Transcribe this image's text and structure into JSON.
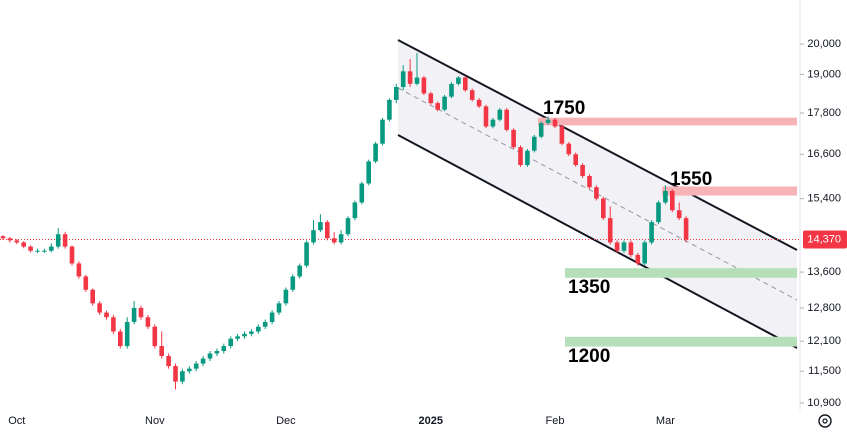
{
  "chart_data": {
    "type": "candlestick",
    "log_scale": true,
    "ylim": [
      21550,
      10770
    ],
    "yticks": [
      {
        "value": 20000,
        "label": "20,000"
      },
      {
        "value": 19000,
        "label": "19,000"
      },
      {
        "value": 17800,
        "label": "17,800"
      },
      {
        "value": 16600,
        "label": "16,600"
      },
      {
        "value": 15400,
        "label": "15,400"
      },
      {
        "value": 13600,
        "label": "13,600"
      },
      {
        "value": 12800,
        "label": "12,800"
      },
      {
        "value": 12100,
        "label": "12,100"
      },
      {
        "value": 11500,
        "label": "11,500"
      },
      {
        "value": 10900,
        "label": "10,900"
      }
    ],
    "last_price": {
      "value": 14370,
      "label": "14,370",
      "color": "#f23645"
    },
    "up_color": "#089981",
    "down_color": "#f23645",
    "categories": [
      null,
      null,
      "Oct",
      null,
      null,
      null,
      null,
      null,
      null,
      null,
      null,
      null,
      null,
      null,
      null,
      null,
      null,
      null,
      null,
      null,
      null,
      null,
      "Nov",
      null,
      null,
      null,
      null,
      null,
      null,
      null,
      null,
      null,
      null,
      null,
      null,
      null,
      null,
      null,
      null,
      null,
      null,
      "Dec",
      null,
      null,
      null,
      null,
      null,
      null,
      null,
      null,
      null,
      null,
      null,
      null,
      null,
      null,
      null,
      null,
      null,
      null,
      null,
      null,
      "2025",
      null,
      null,
      null,
      null,
      null,
      null,
      null,
      null,
      null,
      null,
      null,
      null,
      null,
      null,
      null,
      null,
      null,
      "Feb",
      null,
      null,
      null,
      null,
      null,
      null,
      null,
      null,
      null,
      null,
      null,
      null,
      null,
      null,
      null,
      "Mar",
      null,
      null,
      null
    ],
    "ohlc": [
      [
        14450,
        14480,
        14360,
        14400
      ],
      [
        14400,
        14430,
        14300,
        14350
      ],
      [
        14350,
        14380,
        14260,
        14300
      ],
      [
        14300,
        14330,
        14160,
        14200
      ],
      [
        14200,
        14230,
        14060,
        14100
      ],
      [
        14100,
        14150,
        14050,
        14100
      ],
      [
        14100,
        14150,
        14050,
        14100
      ],
      [
        14100,
        14280,
        14060,
        14200
      ],
      [
        14200,
        14650,
        14150,
        14500
      ],
      [
        14500,
        14560,
        14150,
        14200
      ],
      [
        14200,
        14230,
        13750,
        13800
      ],
      [
        13800,
        13850,
        13450,
        13500
      ],
      [
        13500,
        13540,
        13150,
        13200
      ],
      [
        13200,
        13230,
        12850,
        12900
      ],
      [
        12900,
        12950,
        12650,
        12700
      ],
      [
        12700,
        12740,
        12550,
        12600
      ],
      [
        12600,
        12650,
        12250,
        12300
      ],
      [
        12300,
        12350,
        11950,
        12000
      ],
      [
        12000,
        12600,
        11950,
        12500
      ],
      [
        12500,
        12950,
        12450,
        12800
      ],
      [
        12800,
        12850,
        12550,
        12600
      ],
      [
        12600,
        12650,
        12350,
        12400
      ],
      [
        12400,
        12450,
        11950,
        12000
      ],
      [
        12000,
        12300,
        11750,
        11800
      ],
      [
        11800,
        11850,
        11550,
        11600
      ],
      [
        11600,
        11650,
        11150,
        11300
      ],
      [
        11300,
        11550,
        11250,
        11500
      ],
      [
        11500,
        11600,
        11450,
        11550
      ],
      [
        11550,
        11700,
        11500,
        11650
      ],
      [
        11650,
        11800,
        11600,
        11750
      ],
      [
        11750,
        11900,
        11700,
        11850
      ],
      [
        11850,
        11950,
        11800,
        11900
      ],
      [
        11900,
        12050,
        11850,
        12000
      ],
      [
        12000,
        12200,
        11950,
        12150
      ],
      [
        12150,
        12250,
        12100,
        12200
      ],
      [
        12200,
        12300,
        12150,
        12250
      ],
      [
        12250,
        12350,
        12200,
        12300
      ],
      [
        12300,
        12450,
        12250,
        12400
      ],
      [
        12400,
        12550,
        12350,
        12500
      ],
      [
        12500,
        12750,
        12450,
        12700
      ],
      [
        12700,
        12950,
        12650,
        12900
      ],
      [
        12900,
        13250,
        12850,
        13200
      ],
      [
        13200,
        13550,
        13150,
        13500
      ],
      [
        13500,
        13800,
        13450,
        13750
      ],
      [
        13750,
        14350,
        13700,
        14300
      ],
      [
        14300,
        14850,
        14250,
        14600
      ],
      [
        14600,
        15000,
        14550,
        14800
      ],
      [
        14800,
        14850,
        14350,
        14400
      ],
      [
        14400,
        14550,
        14250,
        14300
      ],
      [
        14300,
        14600,
        14250,
        14500
      ],
      [
        14500,
        14950,
        14450,
        14900
      ],
      [
        14900,
        15350,
        14850,
        15300
      ],
      [
        15300,
        15850,
        15250,
        15800
      ],
      [
        15800,
        16450,
        15750,
        16400
      ],
      [
        16400,
        16950,
        16350,
        16900
      ],
      [
        16900,
        17650,
        16850,
        17600
      ],
      [
        17600,
        18250,
        17550,
        18200
      ],
      [
        18200,
        18700,
        18100,
        18600
      ],
      [
        18600,
        19300,
        18500,
        19100
      ],
      [
        19100,
        19500,
        18600,
        18700
      ],
      [
        18700,
        19700,
        18650,
        18900
      ],
      [
        18900,
        18950,
        18350,
        18400
      ],
      [
        18400,
        18450,
        18050,
        18100
      ],
      [
        18100,
        18150,
        17850,
        17900
      ],
      [
        17900,
        18350,
        17850,
        18300
      ],
      [
        18300,
        18750,
        18250,
        18700
      ],
      [
        18700,
        18950,
        18650,
        18900
      ],
      [
        18900,
        18950,
        18450,
        18500
      ],
      [
        18500,
        18550,
        18150,
        18200
      ],
      [
        18200,
        18250,
        17950,
        18000
      ],
      [
        18000,
        18050,
        17350,
        17400
      ],
      [
        17400,
        17650,
        17350,
        17600
      ],
      [
        17600,
        17950,
        17550,
        17900
      ],
      [
        17900,
        17950,
        17250,
        17300
      ],
      [
        17300,
        17350,
        16750,
        16800
      ],
      [
        16800,
        16850,
        16250,
        16300
      ],
      [
        16300,
        16750,
        16250,
        16700
      ],
      [
        16700,
        17150,
        16650,
        17100
      ],
      [
        17100,
        17550,
        17050,
        17500
      ],
      [
        17500,
        17700,
        17450,
        17600
      ],
      [
        17600,
        17650,
        17350,
        17400
      ],
      [
        17400,
        17450,
        16850,
        16900
      ],
      [
        16900,
        16950,
        16550,
        16600
      ],
      [
        16600,
        16650,
        16250,
        16300
      ],
      [
        16300,
        16350,
        15950,
        16000
      ],
      [
        16000,
        16050,
        15650,
        15700
      ],
      [
        15700,
        15750,
        15350,
        15400
      ],
      [
        15400,
        15450,
        14850,
        14900
      ],
      [
        14900,
        15200,
        14250,
        14300
      ],
      [
        14300,
        14350,
        14050,
        14100
      ],
      [
        14100,
        14350,
        14050,
        14300
      ],
      [
        14300,
        14350,
        13950,
        14000
      ],
      [
        14000,
        14050,
        13750,
        13800
      ],
      [
        13800,
        14350,
        13750,
        14300
      ],
      [
        14300,
        14850,
        14250,
        14800
      ],
      [
        14800,
        15350,
        14750,
        15300
      ],
      [
        15300,
        15750,
        15250,
        15600
      ],
      [
        15600,
        15650,
        15050,
        15100
      ],
      [
        15100,
        15300,
        14850,
        14900
      ],
      [
        14900,
        14950,
        14300,
        14370
      ]
    ],
    "zones": [
      {
        "label": "1750",
        "color": "#f7b3b8",
        "from": 17430,
        "to": 17660
      },
      {
        "label": "1550",
        "color": "#f7b3b8",
        "from": 15480,
        "to": 15720
      },
      {
        "label": "1350",
        "color": "#b5dfb8",
        "from": 13470,
        "to": 13690
      },
      {
        "label": "1200",
        "color": "#b5dfb8",
        "from": 11990,
        "to": 12190
      }
    ]
  }
}
